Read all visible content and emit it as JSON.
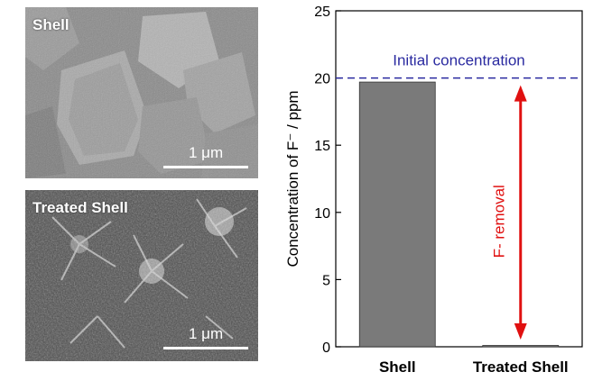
{
  "panels": {
    "top": {
      "label": "Shell",
      "scale": "1 μm"
    },
    "bottom": {
      "label": "Treated Shell",
      "scale": "1 μm"
    }
  },
  "colors": {
    "bar": "#7a7a7a",
    "reference": "#2a2aa0",
    "arrow": "#e01010"
  },
  "chart_data": {
    "type": "bar",
    "categories": [
      "Shell",
      "Treated Shell"
    ],
    "values": [
      19.7,
      0.1
    ],
    "ylabel": "Concentration of F⁻ / ppm",
    "ylim": [
      0,
      25
    ],
    "yticks": [
      0,
      5,
      10,
      15,
      20,
      25
    ],
    "reference_line": {
      "value": 20,
      "label": "Initial concentration"
    },
    "annotation": {
      "label": "F- removal",
      "from": 0,
      "to": 20
    },
    "grid": false
  }
}
